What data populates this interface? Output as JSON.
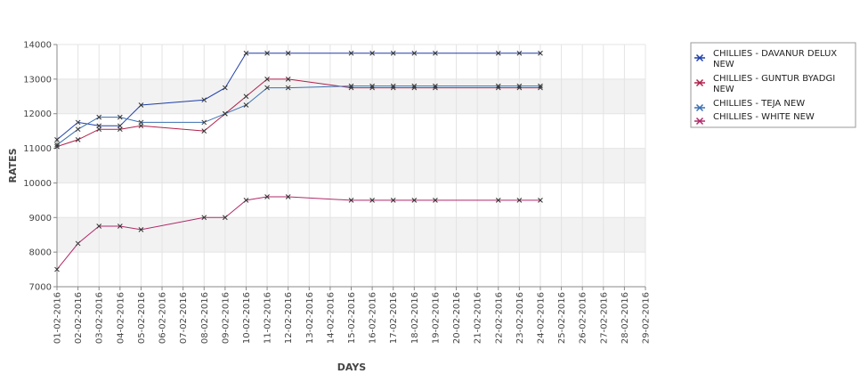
{
  "chart_data": {
    "type": "line",
    "title": "",
    "xlabel": "DAYS",
    "ylabel": "RATES",
    "ylim": [
      7000,
      14000
    ],
    "yticks": [
      7000,
      8000,
      9000,
      10000,
      11000,
      12000,
      13000,
      14000
    ],
    "categories": [
      "01-02-2016",
      "02-02-2016",
      "03-02-2016",
      "04-02-2016",
      "05-02-2016",
      "06-02-2016",
      "07-02-2016",
      "08-02-2016",
      "09-02-2016",
      "10-02-2016",
      "11-02-2016",
      "12-02-2016",
      "13-02-2016",
      "14-02-2016",
      "15-02-2016",
      "16-02-2016",
      "17-02-2016",
      "18-02-2016",
      "19-02-2016",
      "20-02-2016",
      "21-02-2016",
      "22-02-2016",
      "23-02-2016",
      "24-02-2016",
      "25-02-2016",
      "26-02-2016",
      "27-02-2016",
      "28-02-2016",
      "29-02-2016"
    ],
    "grid": true,
    "alternating_bands": true,
    "legend_position": "right",
    "series": [
      {
        "name": "CHILLIES - DAVANUR DELUX NEW",
        "color": "#1f3fa8",
        "points": [
          {
            "x": "01-02-2016",
            "y": 11250
          },
          {
            "x": "02-02-2016",
            "y": 11750
          },
          {
            "x": "03-02-2016",
            "y": 11650
          },
          {
            "x": "04-02-2016",
            "y": 11650
          },
          {
            "x": "05-02-2016",
            "y": 12250
          },
          {
            "x": "08-02-2016",
            "y": 12400
          },
          {
            "x": "09-02-2016",
            "y": 12750
          },
          {
            "x": "10-02-2016",
            "y": 13750
          },
          {
            "x": "11-02-2016",
            "y": 13750
          },
          {
            "x": "12-02-2016",
            "y": 13750
          },
          {
            "x": "15-02-2016",
            "y": 13750
          },
          {
            "x": "16-02-2016",
            "y": 13750
          },
          {
            "x": "17-02-2016",
            "y": 13750
          },
          {
            "x": "18-02-2016",
            "y": 13750
          },
          {
            "x": "19-02-2016",
            "y": 13750
          },
          {
            "x": "22-02-2016",
            "y": 13750
          },
          {
            "x": "23-02-2016",
            "y": 13750
          },
          {
            "x": "24-02-2016",
            "y": 13750
          }
        ]
      },
      {
        "name": "CHILLIES - GUNTUR BYADGI NEW",
        "color": "#b0204a",
        "points": [
          {
            "x": "01-02-2016",
            "y": 11050
          },
          {
            "x": "02-02-2016",
            "y": 11250
          },
          {
            "x": "03-02-2016",
            "y": 11550
          },
          {
            "x": "04-02-2016",
            "y": 11550
          },
          {
            "x": "05-02-2016",
            "y": 11650
          },
          {
            "x": "08-02-2016",
            "y": 11500
          },
          {
            "x": "09-02-2016",
            "y": 12000
          },
          {
            "x": "10-02-2016",
            "y": 12500
          },
          {
            "x": "11-02-2016",
            "y": 13000
          },
          {
            "x": "12-02-2016",
            "y": 13000
          },
          {
            "x": "15-02-2016",
            "y": 12750
          },
          {
            "x": "16-02-2016",
            "y": 12750
          },
          {
            "x": "17-02-2016",
            "y": 12750
          },
          {
            "x": "18-02-2016",
            "y": 12750
          },
          {
            "x": "19-02-2016",
            "y": 12750
          },
          {
            "x": "22-02-2016",
            "y": 12750
          },
          {
            "x": "23-02-2016",
            "y": 12750
          },
          {
            "x": "24-02-2016",
            "y": 12750
          }
        ]
      },
      {
        "name": "CHILLIES - TEJA NEW",
        "color": "#3a6fb0",
        "points": [
          {
            "x": "01-02-2016",
            "y": 11100
          },
          {
            "x": "02-02-2016",
            "y": 11550
          },
          {
            "x": "03-02-2016",
            "y": 11900
          },
          {
            "x": "04-02-2016",
            "y": 11900
          },
          {
            "x": "05-02-2016",
            "y": 11750
          },
          {
            "x": "08-02-2016",
            "y": 11750
          },
          {
            "x": "09-02-2016",
            "y": 12000
          },
          {
            "x": "10-02-2016",
            "y": 12250
          },
          {
            "x": "11-02-2016",
            "y": 12750
          },
          {
            "x": "12-02-2016",
            "y": 12750
          },
          {
            "x": "15-02-2016",
            "y": 12800
          },
          {
            "x": "16-02-2016",
            "y": 12800
          },
          {
            "x": "17-02-2016",
            "y": 12800
          },
          {
            "x": "18-02-2016",
            "y": 12800
          },
          {
            "x": "19-02-2016",
            "y": 12800
          },
          {
            "x": "22-02-2016",
            "y": 12800
          },
          {
            "x": "23-02-2016",
            "y": 12800
          },
          {
            "x": "24-02-2016",
            "y": 12800
          }
        ]
      },
      {
        "name": "CHILLIES - WHITE NEW",
        "color": "#b02a6a",
        "points": [
          {
            "x": "01-02-2016",
            "y": 7500
          },
          {
            "x": "02-02-2016",
            "y": 8250
          },
          {
            "x": "03-02-2016",
            "y": 8750
          },
          {
            "x": "04-02-2016",
            "y": 8750
          },
          {
            "x": "05-02-2016",
            "y": 8650
          },
          {
            "x": "08-02-2016",
            "y": 9000
          },
          {
            "x": "09-02-2016",
            "y": 9000
          },
          {
            "x": "10-02-2016",
            "y": 9500
          },
          {
            "x": "11-02-2016",
            "y": 9600
          },
          {
            "x": "12-02-2016",
            "y": 9600
          },
          {
            "x": "15-02-2016",
            "y": 9500
          },
          {
            "x": "16-02-2016",
            "y": 9500
          },
          {
            "x": "17-02-2016",
            "y": 9500
          },
          {
            "x": "18-02-2016",
            "y": 9500
          },
          {
            "x": "19-02-2016",
            "y": 9500
          },
          {
            "x": "22-02-2016",
            "y": 9500
          },
          {
            "x": "23-02-2016",
            "y": 9500
          },
          {
            "x": "24-02-2016",
            "y": 9500
          }
        ]
      }
    ]
  }
}
